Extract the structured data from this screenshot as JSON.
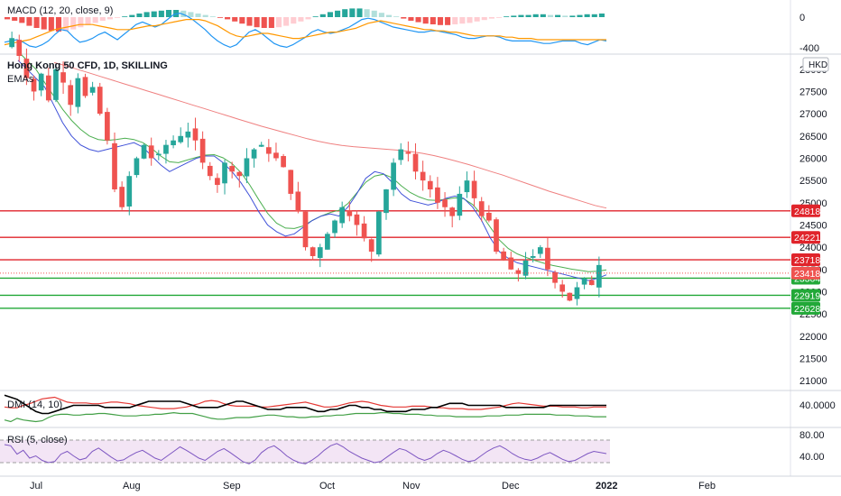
{
  "currency": "HKD",
  "colors": {
    "up": "#26a69a",
    "down": "#ef5350",
    "ema_fast": "#3f51d8",
    "ema_mid": "#4caf50",
    "ema_slow": "#ef8080",
    "resistance": "#e0242b",
    "support": "#22a838",
    "macd_line": "#2196f3",
    "macd_signal": "#ff9800",
    "dmi_adx": "#000000",
    "dmi_plus": "#43a047",
    "dmi_minus": "#e53935",
    "rsi": "#7e57c2",
    "rsi_fill": "#f3e5f5"
  },
  "macd": {
    "label": "MACD (12, 20, close, 9)",
    "ticks": [
      "0",
      "-400"
    ]
  },
  "main": {
    "title": "Hong Kong 50 CFD, 1D, SKILLING",
    "subtitle": "EMAs",
    "price_ticks": [
      "28000",
      "27500",
      "27000",
      "26500",
      "26000",
      "25500",
      "25000",
      "24500",
      "24000",
      "23500",
      "23000",
      "22500",
      "22000",
      "21500",
      "21000"
    ],
    "last_price": "23418"
  },
  "dmi": {
    "label": "DMI (14, 10)",
    "ticks": [
      "40.0000"
    ]
  },
  "rsi": {
    "label": "RSI (5, close)",
    "ticks": [
      "80.00",
      "40.00"
    ]
  },
  "time_axis": [
    "Jul",
    "Aug",
    "Sep",
    "Oct",
    "Nov",
    "Dec",
    "2022",
    "Feb"
  ],
  "chart_data": {
    "type": "candlestick",
    "title": "Hong Kong 50 CFD, 1D, SKILLING",
    "ylim": [
      20800,
      28300
    ],
    "levels": [
      {
        "value": 24818,
        "label": "24818",
        "kind": "resistance"
      },
      {
        "value": 24221,
        "label": "24221",
        "kind": "resistance"
      },
      {
        "value": 23718,
        "label": "23718",
        "kind": "resistance"
      },
      {
        "value": 23304,
        "label": "23304",
        "kind": "support"
      },
      {
        "value": 22919,
        "label": "22919",
        "kind": "support"
      },
      {
        "value": 22628,
        "label": "22628",
        "kind": "support"
      }
    ],
    "price_path": [
      28500,
      28700,
      28300,
      27800,
      27500,
      27900,
      27300,
      28000,
      27700,
      27200,
      27800,
      27400,
      27600,
      27000,
      26400,
      25300,
      24900,
      25600,
      26000,
      26300,
      26000,
      26100,
      26300,
      26400,
      26500,
      26600,
      26400,
      25900,
      25600,
      25400,
      25900,
      25700,
      25600,
      26000,
      26200,
      26300,
      26100,
      26000,
      25800,
      25200,
      24800,
      24000,
      23800,
      24000,
      24300,
      24600,
      24900,
      24700,
      24500,
      24200,
      23900,
      24800,
      25300,
      25900,
      26200,
      26100,
      25700,
      25500,
      25300,
      25000,
      24900,
      24700,
      25200,
      25500,
      25100,
      24700,
      24600,
      23900,
      23700,
      23500,
      23400,
      23700,
      23800,
      24000,
      23500,
      23200,
      23000,
      22800,
      23100,
      23300,
      23150,
      23600
    ],
    "ema_fast": [
      28200,
      28000,
      27800,
      27600,
      27200,
      26800,
      26500,
      26300,
      26200,
      26150,
      26200,
      26250,
      26300,
      26350,
      26250,
      26050,
      25850,
      25700,
      25800,
      25900,
      26000,
      26050,
      26050,
      25900,
      25700,
      25450,
      25150,
      24800,
      24500,
      24350,
      24250,
      24300,
      24450,
      24600,
      24700,
      24750,
      24700,
      24900,
      25200,
      25550,
      25700,
      25650,
      25450,
      25200,
      25050,
      25000,
      24950,
      25000,
      25100,
      25150,
      25100,
      24900,
      24600,
      24200,
      23900,
      23750,
      23650,
      23600,
      23550,
      23500,
      23450,
      23400,
      23350,
      23300,
      23250,
      23300,
      23380
    ],
    "ema_mid": [
      28400,
      28200,
      28000,
      27700,
      27400,
      27100,
      26850,
      26650,
      26500,
      26420,
      26400,
      26420,
      26450,
      26420,
      26350,
      26220,
      26050,
      25920,
      25900,
      25960,
      26020,
      26070,
      26080,
      26010,
      25880,
      25680,
      25400,
      25070,
      24760,
      24540,
      24430,
      24420,
      24480,
      24600,
      24700,
      24780,
      24830,
      24980,
      25220,
      25460,
      25600,
      25640,
      25560,
      25380,
      25230,
      25130,
      25060,
      25050,
      25080,
      25110,
      25090,
      24960,
      24730,
      24440,
      24160,
      23970,
      23850,
      23770,
      23700,
      23640,
      23590,
      23550,
      23510,
      23480,
      23450,
      23460,
      23490
    ],
    "ema_slow": [
      28150,
      28080,
      28000,
      27920,
      27840,
      27760,
      27680,
      27600,
      27520,
      27440,
      27360,
      27280,
      27200,
      27120,
      27040,
      26960,
      26880,
      26800,
      26720,
      26650,
      26580,
      26510,
      26440,
      26380,
      26330,
      26290,
      26260,
      26240,
      26220,
      26200,
      26180,
      26150,
      26110,
      26060,
      26000,
      25930,
      25860,
      25780,
      25700,
      25620,
      25530,
      25440,
      25350,
      25260,
      25180,
      25100,
      25020,
      24940,
      24880
    ],
    "macd_hist": [
      -3,
      -5,
      -8,
      -12,
      -15,
      -17,
      -19,
      -20,
      -19,
      -17,
      -14,
      -11,
      -8,
      -5,
      -3,
      -1,
      1,
      3,
      5,
      7,
      8,
      9,
      10,
      10,
      9,
      7,
      5,
      3,
      1,
      -1,
      -3,
      -6,
      -9,
      -12,
      -14,
      -15,
      -15,
      -14,
      -12,
      -9,
      -6,
      -3,
      1,
      4,
      7,
      9,
      11,
      12,
      12,
      11,
      9,
      6,
      3,
      1,
      -2,
      -5,
      -7,
      -9,
      -10,
      -11,
      -11,
      -10,
      -9,
      -8,
      -6,
      -4,
      -2,
      -1,
      1,
      2,
      3,
      3,
      4,
      4,
      3,
      3,
      2,
      2,
      3,
      4,
      4,
      5
    ],
    "macd_line": [
      8,
      9,
      10,
      8,
      5,
      4,
      6,
      9,
      14,
      18,
      17,
      12,
      8,
      9,
      11,
      14,
      16,
      13,
      10,
      14,
      18,
      22,
      24,
      22,
      20,
      22,
      26,
      30,
      31,
      29,
      26,
      22,
      18,
      13,
      9,
      6,
      4,
      6,
      11,
      16,
      18,
      15,
      11,
      7,
      5,
      4,
      6,
      9,
      12,
      16,
      18,
      16,
      15,
      16,
      18,
      20,
      23,
      26,
      27,
      26,
      24,
      22,
      20,
      19,
      18,
      17,
      16,
      16,
      17,
      17,
      16,
      15,
      14,
      12,
      11,
      11,
      12,
      13,
      13,
      12,
      10,
      9,
      9,
      9,
      9,
      8,
      7,
      7,
      8,
      9,
      9,
      9,
      7,
      6,
      8,
      10,
      9
    ],
    "macd_signal": [
      6,
      7,
      8,
      9,
      10,
      12,
      14,
      16,
      18,
      19,
      20,
      21,
      22,
      22,
      22,
      21,
      20,
      19,
      18,
      18,
      18,
      19,
      20,
      21,
      21,
      22,
      23,
      24,
      25,
      26,
      26,
      26,
      25,
      23,
      21,
      18,
      15,
      13,
      12,
      13,
      14,
      15,
      15,
      14,
      13,
      12,
      11,
      11,
      12,
      13,
      14,
      15,
      16,
      16,
      17,
      18,
      19,
      21,
      23,
      24,
      25,
      24,
      23,
      22,
      21,
      20,
      19,
      18,
      18,
      17,
      17,
      16,
      16,
      15,
      14,
      13,
      13,
      13,
      13,
      13,
      12,
      12,
      11,
      11,
      11,
      10,
      10,
      10,
      10,
      10,
      10,
      10,
      10,
      10,
      10,
      10,
      10
    ],
    "dmi_adx": [
      25,
      24,
      23,
      21,
      19,
      17,
      16,
      16,
      17,
      18,
      19,
      20,
      20,
      20,
      20,
      20,
      19,
      19,
      19,
      19,
      19,
      20,
      21,
      22,
      22,
      22,
      22,
      22,
      22,
      21,
      20,
      19,
      19,
      19,
      19,
      20,
      21,
      22,
      22,
      21,
      20,
      19,
      18,
      18,
      18,
      19,
      19,
      19,
      19,
      18,
      17,
      17,
      18,
      18,
      19,
      20,
      20,
      19,
      19,
      18,
      18,
      17,
      17,
      17,
      17,
      18,
      18,
      18,
      19,
      19,
      20,
      21,
      21,
      21,
      20,
      20,
      20,
      20,
      20,
      20,
      19,
      19,
      19,
      19,
      19,
      19,
      19,
      20,
      20,
      20,
      20,
      20,
      20,
      20,
      20,
      20,
      20
    ],
    "dmi_plus": [
      12,
      10,
      14,
      12,
      11,
      10,
      11,
      15,
      18,
      19,
      19,
      18,
      18,
      19,
      19,
      20,
      20,
      19,
      18,
      17,
      17,
      17,
      18,
      18,
      19,
      19,
      20,
      21,
      20,
      20,
      20,
      18,
      16,
      14,
      13,
      13,
      14,
      15,
      15,
      15,
      16,
      17,
      18,
      18,
      17,
      16,
      16,
      15,
      15,
      16,
      16,
      17,
      17,
      18,
      18,
      19,
      20,
      20,
      20,
      20,
      21,
      21,
      20,
      20,
      19,
      19,
      19,
      18,
      18,
      17,
      17,
      17,
      16,
      16,
      16,
      16,
      16,
      17,
      17,
      17,
      18,
      18,
      18,
      19,
      19,
      19,
      19,
      19,
      18,
      18,
      18,
      17,
      17,
      17,
      16,
      16,
      16
    ],
    "dmi_minus": [
      28,
      27,
      27,
      30,
      32,
      35,
      38,
      39,
      40,
      37,
      34,
      33,
      33,
      33,
      32,
      32,
      33,
      34,
      34,
      33,
      32,
      30,
      29,
      28,
      27,
      26,
      26,
      26,
      27,
      28,
      30,
      32,
      35,
      36,
      35,
      32,
      30,
      29,
      29,
      29,
      29,
      28,
      28,
      29,
      30,
      31,
      32,
      33,
      34,
      32,
      30,
      28,
      28,
      29,
      31,
      33,
      34,
      35,
      34,
      32,
      30,
      29,
      28,
      28,
      28,
      29,
      29,
      29,
      28,
      27,
      27,
      26,
      26,
      26,
      25,
      25,
      25,
      26,
      27,
      28,
      30,
      32,
      33,
      32,
      31,
      30,
      29,
      29,
      29,
      28,
      28,
      28,
      27,
      27,
      28,
      28,
      28
    ],
    "rsi": [
      72,
      70,
      55,
      62,
      48,
      52,
      44,
      40,
      42,
      55,
      60,
      52,
      45,
      48,
      60,
      66,
      58,
      50,
      43,
      45,
      52,
      58,
      62,
      55,
      48,
      44,
      52,
      60,
      68,
      62,
      55,
      48,
      44,
      52,
      60,
      65,
      58,
      50,
      42,
      38,
      45,
      58,
      66,
      70,
      62,
      52,
      45,
      40,
      38,
      44,
      52,
      62,
      70,
      74,
      68,
      60,
      54,
      48,
      44,
      40,
      42,
      50,
      58,
      65,
      62,
      55,
      48,
      44,
      48,
      56,
      62,
      58,
      52,
      46,
      42,
      44,
      52,
      60,
      66,
      70,
      64,
      56,
      50,
      46,
      44,
      48,
      54,
      58,
      52,
      46,
      42,
      44,
      50,
      56,
      60,
      58,
      56
    ]
  }
}
